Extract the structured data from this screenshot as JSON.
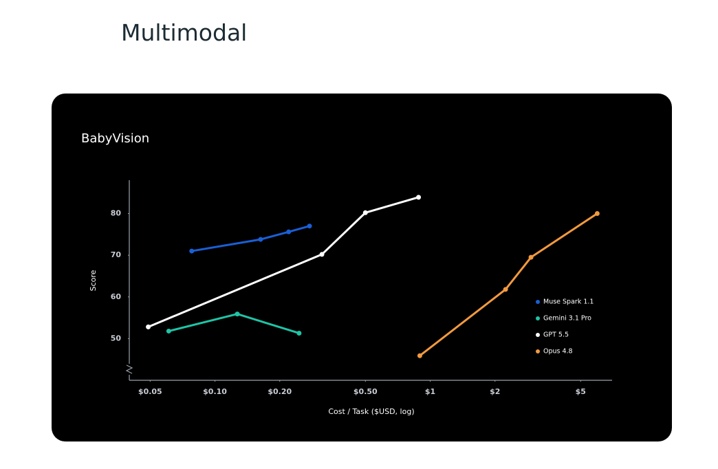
{
  "header": {
    "title": "Multimodal"
  },
  "chart_data": {
    "type": "line",
    "title": "BabyVision",
    "x_label": "Cost / Task ($USD, log)",
    "y_label": "Score",
    "x_scale": "log",
    "xlim": [
      0.04,
      7
    ],
    "ylim": [
      40,
      88
    ],
    "xticks": [
      {
        "value": 0.05,
        "label": "$0.05"
      },
      {
        "value": 0.1,
        "label": "$0.10"
      },
      {
        "value": 0.2,
        "label": "$0.20"
      },
      {
        "value": 0.5,
        "label": "$0.50"
      },
      {
        "value": 1,
        "label": "$1"
      },
      {
        "value": 2,
        "label": "$2"
      },
      {
        "value": 5,
        "label": "$5"
      }
    ],
    "yticks": [
      50,
      60,
      70,
      80
    ],
    "legend": "right",
    "series": [
      {
        "name": "Muse Spark 1.1",
        "color": "#1a5fd6",
        "x": [
          0.078,
          0.163,
          0.22,
          0.275
        ],
        "values": [
          71.0,
          73.8,
          75.6,
          77.0
        ]
      },
      {
        "name": "Gemini 3.1 Pro",
        "color": "#1fc4a6",
        "x": [
          0.061,
          0.127,
          0.246
        ],
        "values": [
          51.8,
          55.9,
          51.3
        ]
      },
      {
        "name": "GPT 5.5",
        "color": "#ffffff",
        "x": [
          0.049,
          0.314,
          0.5,
          0.883
        ],
        "values": [
          52.8,
          70.2,
          80.2,
          83.9
        ]
      },
      {
        "name": "Opus 4.8",
        "color": "#f29a3f",
        "x": [
          0.895,
          2.24,
          2.94,
          5.97
        ],
        "values": [
          45.9,
          61.8,
          69.5,
          80.0
        ]
      }
    ]
  }
}
